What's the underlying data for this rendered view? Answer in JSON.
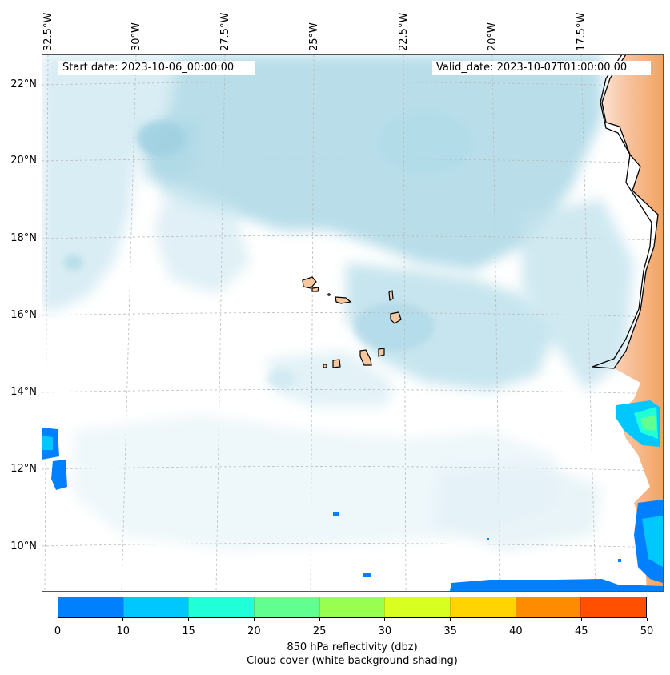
{
  "header": {
    "start_date": "Start date: 2023-10-06_00:00:00",
    "valid_date": "Valid_date: 2023-10-07T01:00:00.00"
  },
  "axes": {
    "longitude_labels": [
      "32.5°W",
      "30°W",
      "27.5°W",
      "25°W",
      "22.5°W",
      "20°W",
      "17.5°W"
    ],
    "latitude_labels": [
      "22°N",
      "20°N",
      "18°N",
      "16°N",
      "14°N",
      "12°N",
      "10°N"
    ]
  },
  "colorbar": {
    "ticks": [
      "0",
      "10",
      "15",
      "20",
      "25",
      "30",
      "35",
      "40",
      "45",
      "50"
    ],
    "colors": [
      "#0080ff",
      "#00c8ff",
      "#20ffd8",
      "#60ff90",
      "#98ff50",
      "#d8ff20",
      "#ffd400",
      "#ff8c00",
      "#ff5000"
    ],
    "label_line1": "850 hPa reflectivity (dbz)",
    "label_line2": "Cloud cover (white background shading)"
  },
  "colors": {
    "cloud": "#add8e6",
    "land": "#f4a460",
    "coast": "#000000"
  }
}
